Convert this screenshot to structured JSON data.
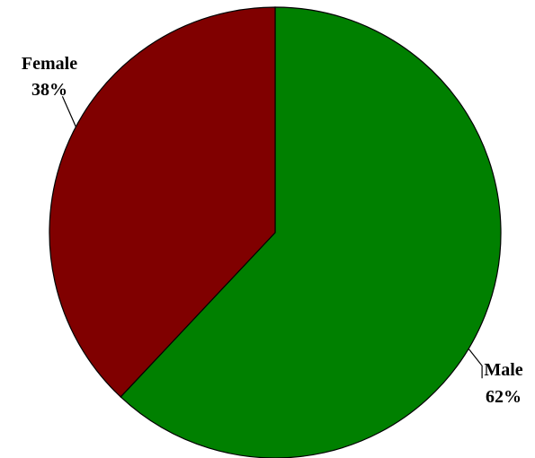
{
  "chart_data": {
    "type": "pie",
    "title": "",
    "slices": [
      {
        "label": "Male",
        "value": 62,
        "value_label": "62%",
        "color": "#008000"
      },
      {
        "label": "Female",
        "value": 38,
        "value_label": "38%",
        "color": "#800000"
      }
    ],
    "start_angle_deg": 0,
    "direction": "clockwise",
    "legend": "none"
  }
}
